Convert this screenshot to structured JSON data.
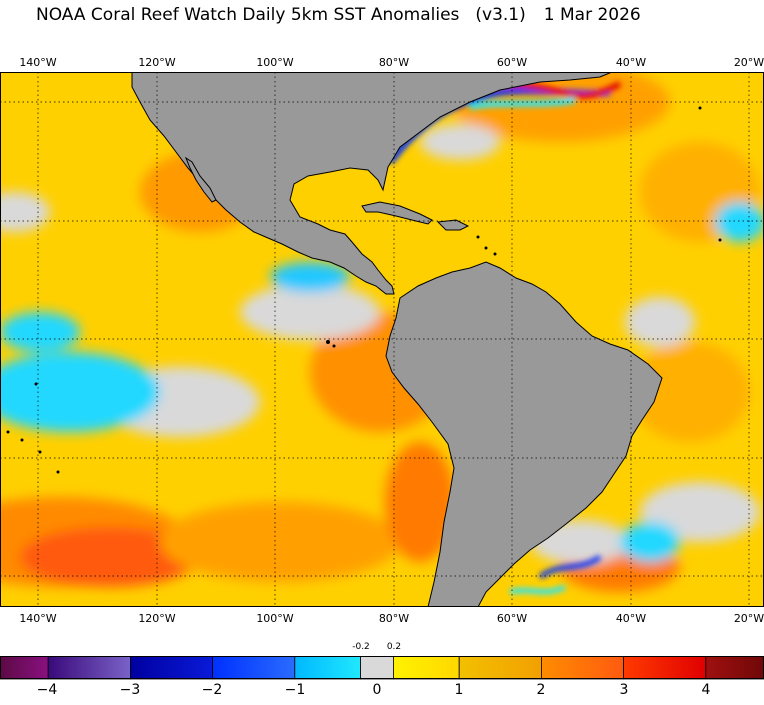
{
  "title": {
    "product": "NOAA Coral Reef Watch Daily 5km SST Anomalies",
    "version": "(v3.1)",
    "date": "1 Mar 2026"
  },
  "map": {
    "longitude_labels": [
      "140°W",
      "120°W",
      "100°W",
      "80°W",
      "60°W",
      "40°W",
      "20°W"
    ],
    "land_color": "#999999",
    "grid": true
  },
  "colorbar": {
    "tick_labels": [
      "−4",
      "−3",
      "−2",
      "−1",
      "0",
      "1",
      "2",
      "3",
      "4"
    ],
    "near_zero_labels": [
      "-0.2",
      "0.2"
    ],
    "near_zero_color": "#d9d9d9",
    "segments": [
      {
        "from": -5,
        "to": -4,
        "color_start": "#5c0a45",
        "color_end": "#8a1080"
      },
      {
        "from": -4,
        "to": -3,
        "color_start": "#3a0a7a",
        "color_end": "#7a62c8"
      },
      {
        "from": -3,
        "to": -2,
        "color_start": "#0000a0",
        "color_end": "#0a1ad8"
      },
      {
        "from": -2,
        "to": -1,
        "color_start": "#0030ff",
        "color_end": "#2a6cff"
      },
      {
        "from": -1,
        "to": -0.2,
        "color_start": "#00b8ff",
        "color_end": "#20e8ff"
      },
      {
        "from": -0.2,
        "to": 0.2,
        "color_start": "#d9d9d9",
        "color_end": "#d9d9d9"
      },
      {
        "from": 0.2,
        "to": 1,
        "color_start": "#fff200",
        "color_end": "#ffd800"
      },
      {
        "from": 1,
        "to": 2,
        "color_start": "#f2c000",
        "color_end": "#f2a000"
      },
      {
        "from": 2,
        "to": 3,
        "color_start": "#ff8c00",
        "color_end": "#ff5a10"
      },
      {
        "from": 3,
        "to": 4,
        "color_start": "#ff3a00",
        "color_end": "#e00000"
      },
      {
        "from": 4,
        "to": 5,
        "color_start": "#a01010",
        "color_end": "#700808"
      }
    ]
  }
}
